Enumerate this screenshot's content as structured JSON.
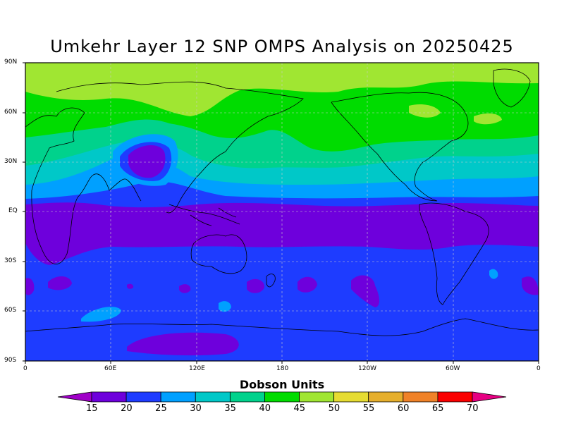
{
  "title": "Umkehr Layer 12 SNP OMPS Analysis on 20250425",
  "y_ticks": [
    "90N",
    "60N",
    "30N",
    "EQ",
    "30S",
    "60S",
    "90S"
  ],
  "x_ticks": [
    "0",
    "60E",
    "120E",
    "180",
    "120W",
    "60W",
    "0"
  ],
  "colorbar": {
    "label": "Dobson Units",
    "ticks": [
      "15",
      "20",
      "25",
      "30",
      "35",
      "40",
      "45",
      "50",
      "55",
      "60",
      "65",
      "70"
    ],
    "colors": [
      "#a000c8",
      "#6e00dc",
      "#1e3cff",
      "#00a0ff",
      "#00c8c8",
      "#00d28c",
      "#00dc00",
      "#a0e632",
      "#e6dc32",
      "#e6af2d",
      "#f08228",
      "#fa0000",
      "#e60082"
    ]
  },
  "chart_data": {
    "type": "heatmap",
    "title": "Umkehr Layer 12 SNP OMPS Analysis on 20250425",
    "units": "Dobson Units",
    "x_range": [
      0,
      360
    ],
    "y_range": [
      -90,
      90
    ],
    "grid": true,
    "legend": "bottom colorbar",
    "bands": [
      {
        "lat_range": [
          60,
          90
        ],
        "value_range": [
          45,
          50
        ]
      },
      {
        "lat_range": [
          40,
          60
        ],
        "value_range": [
          40,
          45
        ]
      },
      {
        "lat_range": [
          25,
          40
        ],
        "value_range": [
          35,
          40
        ]
      },
      {
        "lat_range": [
          10,
          25
        ],
        "value_range": [
          25,
          35
        ]
      },
      {
        "lat_range": [
          -25,
          5
        ],
        "value_range": [
          15,
          20
        ]
      },
      {
        "lat_range": [
          -70,
          -25
        ],
        "value_range": [
          20,
          25
        ]
      },
      {
        "lat_range": [
          -90,
          -70
        ],
        "value_range": [
          15,
          25
        ]
      }
    ]
  }
}
